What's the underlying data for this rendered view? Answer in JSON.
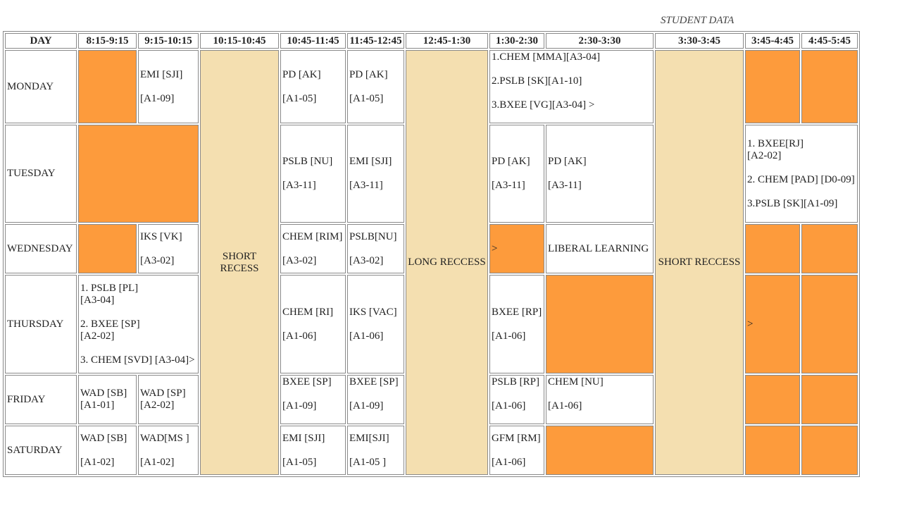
{
  "caption": "STUDENT DATA",
  "headers": [
    "DAY",
    "8:15-9:15",
    "9:15-10:15",
    "10:15-10:45",
    "10:45-11:45",
    "11:45-12:45",
    "12:45-1:30",
    "1:30-2:30",
    "2:30-3:30",
    "3:30-3:45",
    "3:45-4:45",
    "4:45-5:45"
  ],
  "breaks": {
    "short1": "SHORT RECESS",
    "long": "LONG RECCESS",
    "short2": "SHORT RECCESS"
  },
  "colors": {
    "free": "#fd9b3c",
    "recess": "#f4dfb0",
    "border": "#8a8a8a"
  },
  "days": {
    "mon": "MONDAY",
    "tue": "TUESDAY",
    "wed": "WEDNESDAY",
    "thu": "THURSDAY",
    "fri": "FRIDAY",
    "sat": "SATURDAY"
  },
  "mon": {
    "s2": [
      "EMI [SJI]",
      "[A1-09]"
    ],
    "s4": [
      "PD [AK]",
      "[A1-05]"
    ],
    "s5": [
      "PD [AK]",
      "[A1-05]"
    ],
    "s7": [
      "1.CHEM [MMA][A3-04]",
      "2.PSLB [SK][A1-10]",
      "3.BXEE [VG][A3-04] >"
    ]
  },
  "tue": {
    "s4": [
      "PSLB [NU]",
      "[A3-11]"
    ],
    "s5": [
      "EMI [SJI]",
      "[A3-11]"
    ],
    "s7": [
      "PD [AK]",
      "[A3-11]"
    ],
    "s8": [
      "PD [AK]",
      "[A3-11]"
    ],
    "s10": [
      "1. BXEE[RJ]",
      "[A2-02]",
      "2. CHEM [PAD] [D0-09]",
      "3.PSLB [SK][A1-09]"
    ]
  },
  "wed": {
    "s2": [
      "IKS [VK]",
      "[A3-02]"
    ],
    "s4": [
      "CHEM [RIM]",
      "[A3-02]"
    ],
    "s5": [
      "PSLB[NU]",
      "[A3-02]"
    ],
    "s7": ">",
    "s8": "LIBERAL LEARNING"
  },
  "thu": {
    "s1": [
      "1. PSLB [PL]",
      "[A3-04]",
      "2. BXEE [SP]",
      "[A2-02]",
      "3. CHEM [SVD] [A3-04]>"
    ],
    "s4": [
      "CHEM [RI]",
      "[A1-06]"
    ],
    "s5": [
      "IKS [VAC]",
      "[A1-06]"
    ],
    "s7": [
      "BXEE [RP]",
      "[A1-06]"
    ],
    "s10": ">"
  },
  "fri": {
    "s1": [
      "WAD [SB]",
      "[A1-01]"
    ],
    "s2": [
      "WAD [SP]",
      "[A2-02]"
    ],
    "s4": [
      "BXEE [SP]",
      "[A1-09]"
    ],
    "s5": [
      "BXEE [SP]",
      "[A1-09]"
    ],
    "s7": [
      "PSLB [RP]",
      "[A1-06]"
    ],
    "s8": [
      "CHEM [NU]",
      "[A1-06]"
    ]
  },
  "sat": {
    "s1": [
      "WAD [SB]",
      "[A1-02]"
    ],
    "s2": [
      "WAD[MS ]",
      "[A1-02]"
    ],
    "s4": [
      "EMI [SJI]",
      "[A1-05]"
    ],
    "s5": [
      "EMI[SJI]",
      "[A1-05 ]"
    ],
    "s7": [
      "GFM [RM]",
      "[A1-06]"
    ]
  }
}
